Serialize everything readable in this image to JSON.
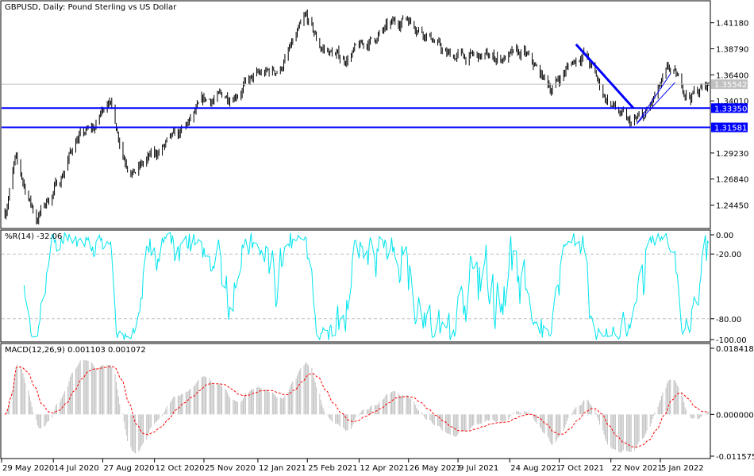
{
  "chart_data": [
    {
      "type": "ohlc",
      "title": "GBPUSD, Daily:  Pound Sterling vs US Dollar",
      "symbol": "GBPUSD",
      "timeframe": "Daily",
      "description": "Pound Sterling vs US Dollar",
      "ylim": [
        1.2245,
        1.4305
      ],
      "y_ticks": [
        "1.41180",
        "1.38790",
        "1.36400",
        "1.34010",
        "1.29230",
        "1.26840",
        "1.24450"
      ],
      "current_price": "1.35542",
      "horizontal_lines": [
        {
          "label": "1.33350",
          "value": 1.3335,
          "color": "#0000ff"
        },
        {
          "label": "1.31581",
          "value": 1.31581,
          "color": "#0000ff"
        }
      ],
      "trendlines": [
        {
          "from": [
            "2021-10-22",
            1.392
          ],
          "to": [
            "2021-12-12",
            1.3335
          ],
          "color": "#0000ff",
          "width": "thick"
        },
        {
          "from": [
            "2021-12-15",
            1.319
          ],
          "to": [
            "2022-01-14",
            1.365
          ],
          "color": "#0000ff",
          "width": "thin"
        },
        {
          "from": [
            "2021-12-15",
            1.319
          ],
          "to": [
            "2022-01-18",
            1.357
          ],
          "color": "#0000ff",
          "width": "thin"
        }
      ],
      "approx_closes": [
        [
          "2020-06-01",
          1.238
        ],
        [
          "2020-06-10",
          1.285
        ],
        [
          "2020-06-29",
          1.232
        ],
        [
          "2020-07-20",
          1.268
        ],
        [
          "2020-08-03",
          1.305
        ],
        [
          "2020-08-20",
          1.315
        ],
        [
          "2020-09-01",
          1.345
        ],
        [
          "2020-09-15",
          1.29
        ],
        [
          "2020-09-24",
          1.275
        ],
        [
          "2020-10-23",
          1.3
        ],
        [
          "2020-11-05",
          1.31
        ],
        [
          "2020-11-26",
          1.34
        ],
        [
          "2020-12-17",
          1.345
        ],
        [
          "2021-01-11",
          1.362
        ],
        [
          "2021-02-01",
          1.37
        ],
        [
          "2021-02-24",
          1.415
        ],
        [
          "2021-03-08",
          1.39
        ],
        [
          "2021-03-29",
          1.378
        ],
        [
          "2021-04-26",
          1.398
        ],
        [
          "2021-05-24",
          1.418
        ],
        [
          "2021-06-16",
          1.398
        ],
        [
          "2021-06-28",
          1.382
        ],
        [
          "2021-07-26",
          1.38
        ],
        [
          "2021-08-16",
          1.38
        ],
        [
          "2021-09-06",
          1.382
        ],
        [
          "2021-09-30",
          1.352
        ],
        [
          "2021-10-18",
          1.375
        ],
        [
          "2021-10-29",
          1.385
        ],
        [
          "2021-11-16",
          1.345
        ],
        [
          "2021-12-08",
          1.318
        ],
        [
          "2021-12-22",
          1.325
        ],
        [
          "2022-01-13",
          1.368
        ],
        [
          "2022-01-31",
          1.345
        ],
        [
          "2022-02-17",
          1.355
        ]
      ],
      "x_labels": [
        "29 May 2020",
        "14 Jul 2020",
        "27 Aug 2020",
        "12 Oct 2020",
        "25 Nov 2020",
        "12 Jan 2021",
        "25 Feb 2021",
        "12 Apr 2021",
        "26 May 2021",
        "9 Jul 2021",
        "24 Aug 2021",
        "7 Oct 2021",
        "22 Nov 2021",
        "5 Jan 2022"
      ],
      "x_label_dates": [
        "2020-05-29",
        "2020-07-14",
        "2020-08-27",
        "2020-10-12",
        "2020-11-25",
        "2021-01-12",
        "2021-02-25",
        "2021-04-12",
        "2021-05-26",
        "2021-07-09",
        "2021-08-24",
        "2021-10-07",
        "2021-11-22",
        "2022-01-05"
      ],
      "bar_color": "#000000",
      "grid": false
    },
    {
      "type": "line",
      "title": "%R(14) -32.06",
      "indicator": "Williams %R",
      "period": 14,
      "last_value": -32.06,
      "ylim": [
        -100,
        0
      ],
      "y_ticks": [
        "0.00",
        "-20.00",
        "-80.00",
        "-100.00"
      ],
      "levels": [
        -20,
        -80
      ],
      "color": "#00e5ee"
    },
    {
      "type": "bar",
      "title": "MACD(12,26,9) 0.001103 0.001072",
      "indicator": "MACD",
      "params": [
        12,
        26,
        9
      ],
      "macd_value": 0.001103,
      "signal_value": 0.001072,
      "ylim": [
        -0.011575,
        0.018418
      ],
      "y_ticks": [
        "0.018418",
        "0.000000",
        "-0.011575"
      ],
      "histogram_color": "#c0c0c0",
      "signal_color": "#ff0000"
    }
  ]
}
